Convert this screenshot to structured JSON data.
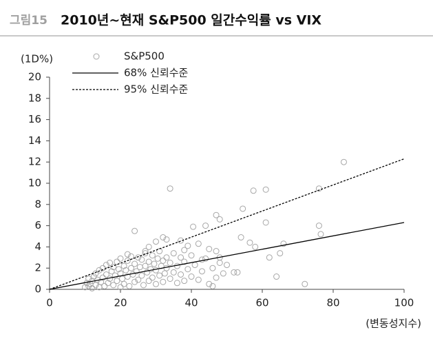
{
  "header": {
    "figure_label": "그림15",
    "title": "2010년~현재 S&P500 일간수익률 vs VIX"
  },
  "chart_data": {
    "type": "scatter",
    "y_axis_label": "(1D%)",
    "x_axis_label": "(변동성지수)",
    "xlim": [
      0,
      100
    ],
    "xticks": [
      0,
      20,
      40,
      60,
      80,
      100
    ],
    "ylim": [
      0,
      20
    ],
    "yticks": [
      0,
      2,
      4,
      6,
      8,
      10,
      12,
      14,
      16,
      18,
      20
    ],
    "legend": "top-left",
    "series": [
      {
        "name": "S&P500",
        "type": "scatter",
        "marker": "circle",
        "color": "#a6a6a6",
        "x": [
          10,
          10.5,
          11,
          11,
          11.5,
          12,
          12,
          12.5,
          13,
          13,
          13.5,
          14,
          14,
          14.5,
          15,
          15,
          15.5,
          16,
          16,
          16.5,
          17,
          17,
          17.5,
          18,
          18,
          18.5,
          19,
          19,
          19.5,
          20,
          20,
          20,
          20.5,
          21,
          21,
          21.5,
          22,
          22,
          22.5,
          23,
          23,
          23.5,
          24,
          24,
          24.5,
          25,
          25,
          25.5,
          26,
          26,
          26.5,
          27,
          27,
          27.5,
          28,
          28,
          28.5,
          29,
          29,
          29.5,
          30,
          30,
          30.5,
          31,
          31,
          31.5,
          32,
          32,
          32.5,
          33,
          33,
          34,
          34,
          35,
          35,
          36,
          36,
          37,
          37,
          38,
          38,
          39,
          40,
          40,
          41,
          42,
          43,
          44,
          45,
          46,
          47,
          48,
          49,
          22,
          24,
          27,
          28,
          30,
          32,
          33,
          34,
          37,
          38,
          39,
          40.5,
          42,
          43,
          44,
          45,
          46,
          47,
          47,
          48,
          48,
          50,
          52,
          53,
          54,
          54.5,
          56.5,
          57.5,
          58,
          61,
          61,
          62,
          64,
          65,
          66,
          72,
          76,
          76,
          76.5,
          83
        ],
        "values": [
          0.2,
          0.6,
          0.3,
          1.0,
          0.5,
          0.1,
          0.8,
          1.2,
          0.4,
          1.5,
          0.9,
          0.2,
          1.8,
          0.7,
          1.1,
          2.0,
          0.3,
          1.4,
          2.3,
          0.6,
          1.0,
          2.5,
          1.7,
          0.4,
          2.1,
          1.3,
          0.8,
          2.6,
          1.9,
          0.2,
          1.5,
          2.9,
          1.0,
          2.2,
          0.5,
          1.8,
          2.7,
          1.2,
          0.3,
          2.0,
          3.1,
          1.4,
          0.7,
          2.4,
          1.7,
          3.0,
          0.9,
          2.1,
          1.3,
          2.8,
          0.4,
          2.2,
          3.4,
          1.6,
          0.8,
          2.6,
          1.9,
          3.2,
          1.1,
          2.4,
          0.5,
          1.8,
          2.9,
          1.3,
          3.6,
          2.2,
          0.7,
          2.7,
          1.5,
          3.0,
          2.0,
          1.0,
          2.5,
          3.4,
          1.6,
          0.6,
          2.2,
          3.0,
          1.4,
          2.6,
          0.8,
          1.9,
          3.2,
          1.2,
          2.3,
          0.9,
          1.7,
          2.9,
          0.5,
          2.0,
          1.1,
          3.0,
          1.5,
          3.3,
          5.5,
          3.6,
          4.0,
          4.5,
          4.9,
          4.7,
          9.5,
          4.6,
          3.7,
          4.1,
          5.9,
          4.3,
          2.8,
          6.0,
          3.8,
          0.3,
          7.0,
          3.6,
          6.6,
          2.5,
          2.3,
          1.6,
          1.6,
          4.9,
          7.6,
          4.4,
          9.3,
          4.0,
          9.4,
          6.3,
          3.0,
          1.2,
          3.4,
          4.3,
          0.5,
          9.5,
          6.0,
          5.2,
          12.0
        ]
      },
      {
        "name": "68% 신뢰수준",
        "type": "line",
        "dash": "solid",
        "color": "#000000",
        "x": [
          0,
          100
        ],
        "values": [
          0,
          6.3
        ]
      },
      {
        "name": "95% 신뢰수준",
        "type": "line",
        "dash": "dashed",
        "color": "#000000",
        "x": [
          0,
          100
        ],
        "values": [
          0,
          12.3
        ]
      }
    ]
  }
}
